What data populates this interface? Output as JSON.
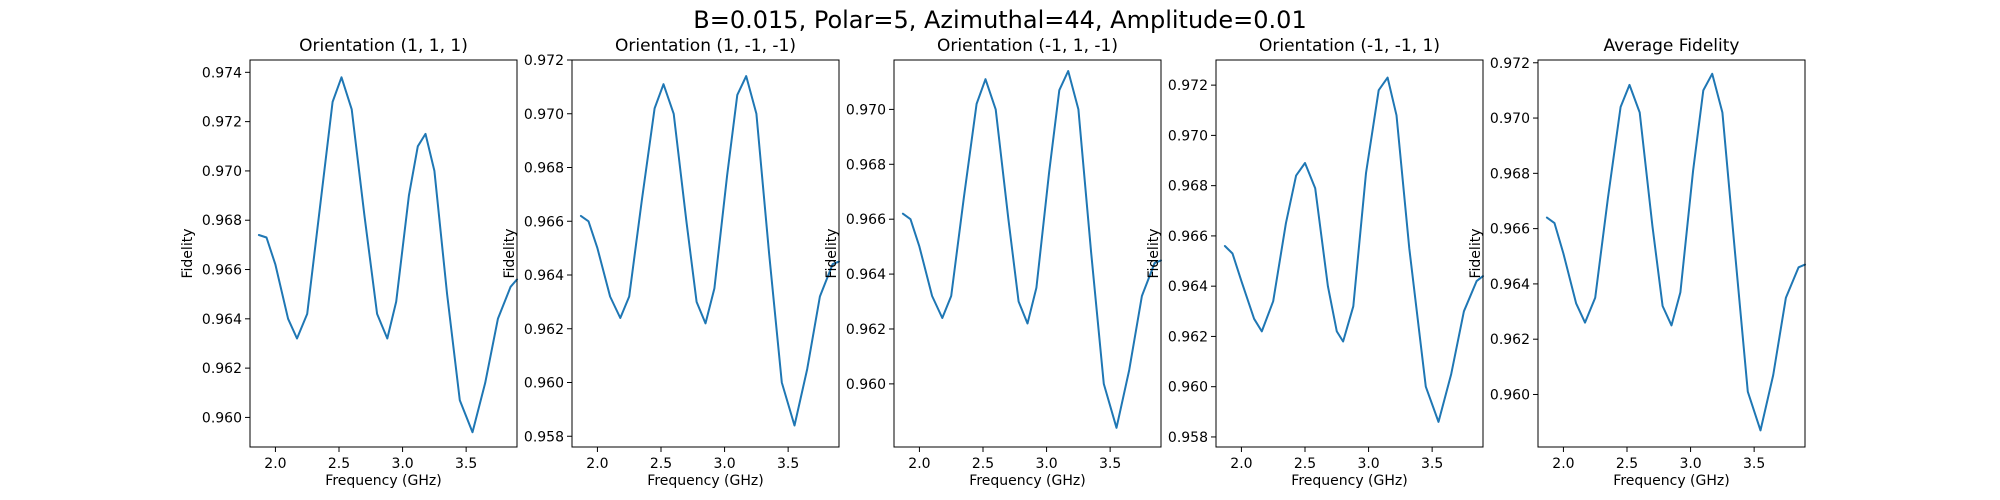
{
  "figure": {
    "suptitle": "B=0.015, Polar=5, Azimuthal=44, Amplitude=0.01"
  },
  "chart_data": [
    {
      "type": "line",
      "title": "Orientation (1, 1, 1)",
      "xlabel": "Frequency (GHz)",
      "ylabel": "Fidelity",
      "color": "#1f77b4",
      "xlim": [
        1.8,
        3.9
      ],
      "ylim": [
        0.9588,
        0.9745
      ],
      "xticks": [
        2.0,
        2.5,
        3.0,
        3.5
      ],
      "xtick_labels": [
        "2.0",
        "2.5",
        "3.0",
        "3.5"
      ],
      "yticks": [
        0.96,
        0.962,
        0.964,
        0.966,
        0.968,
        0.97,
        0.972,
        0.974
      ],
      "ytick_labels": [
        "0.960",
        "0.962",
        "0.964",
        "0.966",
        "0.968",
        "0.970",
        "0.972",
        "0.974"
      ],
      "points": [
        [
          1.87,
          0.9674
        ],
        [
          1.93,
          0.9673
        ],
        [
          2.0,
          0.9662
        ],
        [
          2.1,
          0.964
        ],
        [
          2.17,
          0.9632
        ],
        [
          2.25,
          0.9642
        ],
        [
          2.35,
          0.9685
        ],
        [
          2.45,
          0.9728
        ],
        [
          2.52,
          0.9738
        ],
        [
          2.6,
          0.9725
        ],
        [
          2.7,
          0.9682
        ],
        [
          2.8,
          0.9642
        ],
        [
          2.88,
          0.9632
        ],
        [
          2.95,
          0.9647
        ],
        [
          3.05,
          0.969
        ],
        [
          3.12,
          0.971
        ],
        [
          3.18,
          0.9715
        ],
        [
          3.25,
          0.97
        ],
        [
          3.35,
          0.965
        ],
        [
          3.45,
          0.9607
        ],
        [
          3.55,
          0.9594
        ],
        [
          3.65,
          0.9614
        ],
        [
          3.75,
          0.964
        ],
        [
          3.85,
          0.9653
        ],
        [
          3.9,
          0.9656
        ]
      ]
    },
    {
      "type": "line",
      "title": "Orientation (1, -1, -1)",
      "xlabel": "Frequency (GHz)",
      "ylabel": "Fidelity",
      "color": "#1f77b4",
      "xlim": [
        1.8,
        3.9
      ],
      "ylim": [
        0.9576,
        0.972
      ],
      "xticks": [
        2.0,
        2.5,
        3.0,
        3.5
      ],
      "xtick_labels": [
        "2.0",
        "2.5",
        "3.0",
        "3.5"
      ],
      "yticks": [
        0.958,
        0.96,
        0.962,
        0.964,
        0.966,
        0.968,
        0.97,
        0.972
      ],
      "ytick_labels": [
        "0.958",
        "0.960",
        "0.962",
        "0.964",
        "0.966",
        "0.968",
        "0.970",
        "0.972"
      ],
      "points": [
        [
          1.87,
          0.9662
        ],
        [
          1.93,
          0.966
        ],
        [
          2.0,
          0.965
        ],
        [
          2.1,
          0.9632
        ],
        [
          2.18,
          0.9624
        ],
        [
          2.25,
          0.9632
        ],
        [
          2.35,
          0.9668
        ],
        [
          2.45,
          0.9702
        ],
        [
          2.52,
          0.9711
        ],
        [
          2.6,
          0.97
        ],
        [
          2.7,
          0.966
        ],
        [
          2.78,
          0.963
        ],
        [
          2.85,
          0.9622
        ],
        [
          2.92,
          0.9635
        ],
        [
          3.02,
          0.9677
        ],
        [
          3.1,
          0.9707
        ],
        [
          3.17,
          0.9714
        ],
        [
          3.25,
          0.97
        ],
        [
          3.35,
          0.9648
        ],
        [
          3.45,
          0.96
        ],
        [
          3.55,
          0.9584
        ],
        [
          3.65,
          0.9605
        ],
        [
          3.75,
          0.9632
        ],
        [
          3.85,
          0.9644
        ],
        [
          3.9,
          0.9645
        ]
      ]
    },
    {
      "type": "line",
      "title": "Orientation (-1, 1, -1)",
      "xlabel": "Frequency (GHz)",
      "ylabel": "Fidelity",
      "color": "#1f77b4",
      "xlim": [
        1.8,
        3.9
      ],
      "ylim": [
        0.9577,
        0.9718
      ],
      "xticks": [
        2.0,
        2.5,
        3.0,
        3.5
      ],
      "xtick_labels": [
        "2.0",
        "2.5",
        "3.0",
        "3.5"
      ],
      "yticks": [
        0.96,
        0.962,
        0.964,
        0.966,
        0.968,
        0.97
      ],
      "ytick_labels": [
        "0.960",
        "0.962",
        "0.964",
        "0.966",
        "0.968",
        "0.970"
      ],
      "points": [
        [
          1.87,
          0.9662
        ],
        [
          1.93,
          0.966
        ],
        [
          2.0,
          0.965
        ],
        [
          2.1,
          0.9632
        ],
        [
          2.18,
          0.9624
        ],
        [
          2.25,
          0.9632
        ],
        [
          2.35,
          0.9668
        ],
        [
          2.45,
          0.9702
        ],
        [
          2.52,
          0.9711
        ],
        [
          2.6,
          0.97
        ],
        [
          2.7,
          0.966
        ],
        [
          2.78,
          0.963
        ],
        [
          2.85,
          0.9622
        ],
        [
          2.92,
          0.9635
        ],
        [
          3.02,
          0.9677
        ],
        [
          3.1,
          0.9707
        ],
        [
          3.17,
          0.9714
        ],
        [
          3.25,
          0.97
        ],
        [
          3.35,
          0.9648
        ],
        [
          3.45,
          0.96
        ],
        [
          3.55,
          0.9584
        ],
        [
          3.65,
          0.9605
        ],
        [
          3.75,
          0.9632
        ],
        [
          3.85,
          0.9644
        ],
        [
          3.9,
          0.9645
        ]
      ]
    },
    {
      "type": "line",
      "title": "Orientation (-1, -1, 1)",
      "xlabel": "Frequency (GHz)",
      "ylabel": "Fidelity",
      "color": "#1f77b4",
      "xlim": [
        1.8,
        3.9
      ],
      "ylim": [
        0.9576,
        0.973
      ],
      "xticks": [
        2.0,
        2.5,
        3.0,
        3.5
      ],
      "xtick_labels": [
        "2.0",
        "2.5",
        "3.0",
        "3.5"
      ],
      "yticks": [
        0.958,
        0.96,
        0.962,
        0.964,
        0.966,
        0.968,
        0.97,
        0.972
      ],
      "ytick_labels": [
        "0.958",
        "0.960",
        "0.962",
        "0.964",
        "0.966",
        "0.968",
        "0.970",
        "0.972"
      ],
      "points": [
        [
          1.87,
          0.9656
        ],
        [
          1.93,
          0.9653
        ],
        [
          2.0,
          0.9642
        ],
        [
          2.1,
          0.9627
        ],
        [
          2.16,
          0.9622
        ],
        [
          2.25,
          0.9634
        ],
        [
          2.35,
          0.9665
        ],
        [
          2.43,
          0.9684
        ],
        [
          2.5,
          0.9689
        ],
        [
          2.58,
          0.9679
        ],
        [
          2.68,
          0.964
        ],
        [
          2.75,
          0.9622
        ],
        [
          2.8,
          0.9618
        ],
        [
          2.88,
          0.9632
        ],
        [
          2.98,
          0.9685
        ],
        [
          3.08,
          0.9718
        ],
        [
          3.15,
          0.9723
        ],
        [
          3.22,
          0.9708
        ],
        [
          3.32,
          0.9655
        ],
        [
          3.45,
          0.96
        ],
        [
          3.55,
          0.9586
        ],
        [
          3.65,
          0.9605
        ],
        [
          3.75,
          0.963
        ],
        [
          3.85,
          0.9642
        ],
        [
          3.9,
          0.9644
        ]
      ]
    },
    {
      "type": "line",
      "title": "Average Fidelity",
      "xlabel": "Frequency (GHz)",
      "ylabel": "Fidelity",
      "color": "#1f77b4",
      "xlim": [
        1.8,
        3.9
      ],
      "ylim": [
        0.9581,
        0.9721
      ],
      "xticks": [
        2.0,
        2.5,
        3.0,
        3.5
      ],
      "xtick_labels": [
        "2.0",
        "2.5",
        "3.0",
        "3.5"
      ],
      "yticks": [
        0.96,
        0.962,
        0.964,
        0.966,
        0.968,
        0.97,
        0.972
      ],
      "ytick_labels": [
        "0.960",
        "0.962",
        "0.964",
        "0.966",
        "0.968",
        "0.970",
        "0.972"
      ],
      "points": [
        [
          1.87,
          0.9664
        ],
        [
          1.93,
          0.9662
        ],
        [
          2.0,
          0.9651
        ],
        [
          2.1,
          0.9633
        ],
        [
          2.17,
          0.9626
        ],
        [
          2.25,
          0.9635
        ],
        [
          2.35,
          0.9671
        ],
        [
          2.45,
          0.9704
        ],
        [
          2.52,
          0.9712
        ],
        [
          2.6,
          0.9702
        ],
        [
          2.7,
          0.9661
        ],
        [
          2.78,
          0.9632
        ],
        [
          2.85,
          0.9625
        ],
        [
          2.92,
          0.9637
        ],
        [
          3.02,
          0.9681
        ],
        [
          3.1,
          0.971
        ],
        [
          3.17,
          0.9716
        ],
        [
          3.25,
          0.9702
        ],
        [
          3.35,
          0.9651
        ],
        [
          3.45,
          0.9601
        ],
        [
          3.55,
          0.9587
        ],
        [
          3.65,
          0.9607
        ],
        [
          3.75,
          0.9635
        ],
        [
          3.85,
          0.9646
        ],
        [
          3.9,
          0.9647
        ]
      ]
    }
  ]
}
